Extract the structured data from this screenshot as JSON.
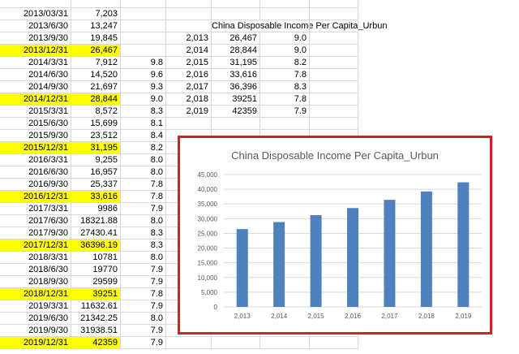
{
  "left_table": [
    {
      "date": "2013/03/31",
      "value": "7,203",
      "growth": "",
      "highlight": false
    },
    {
      "date": "2013/6/30",
      "value": "13,247",
      "growth": "",
      "highlight": false
    },
    {
      "date": "2013/9/30",
      "value": "19,845",
      "growth": "",
      "highlight": false
    },
    {
      "date": "2013/12/31",
      "value": "26,467",
      "growth": "",
      "highlight": true
    },
    {
      "date": "2014/3/31",
      "value": "7,912",
      "growth": "9.8",
      "highlight": false
    },
    {
      "date": "2014/6/30",
      "value": "14,520",
      "growth": "9.6",
      "highlight": false
    },
    {
      "date": "2014/9/30",
      "value": "21,697",
      "growth": "9.3",
      "highlight": false
    },
    {
      "date": "2014/12/31",
      "value": "28,844",
      "growth": "9.0",
      "highlight": true
    },
    {
      "date": "2015/3/31",
      "value": "8,572",
      "growth": "8.3",
      "highlight": false
    },
    {
      "date": "2015/6/30",
      "value": "15,699",
      "growth": "8.1",
      "highlight": false
    },
    {
      "date": "2015/9/30",
      "value": "23,512",
      "growth": "8.4",
      "highlight": false
    },
    {
      "date": "2015/12/31",
      "value": "31,195",
      "growth": "8.2",
      "highlight": true
    },
    {
      "date": "2016/3/31",
      "value": "9,255",
      "growth": "8.0",
      "highlight": false
    },
    {
      "date": "2016/6/30",
      "value": "16,957",
      "growth": "8.0",
      "highlight": false
    },
    {
      "date": "2016/9/30",
      "value": "25,337",
      "growth": "7.8",
      "highlight": false
    },
    {
      "date": "2016/12/31",
      "value": "33,616",
      "growth": "7.8",
      "highlight": true
    },
    {
      "date": "2017/3/31",
      "value": "9986",
      "growth": "7.9",
      "highlight": false
    },
    {
      "date": "2017/6/30",
      "value": "18321.88",
      "growth": "8.0",
      "highlight": false
    },
    {
      "date": "2017/9/30",
      "value": "27430.41",
      "growth": "8.3",
      "highlight": false
    },
    {
      "date": "2017/12/31",
      "value": "36396.19",
      "growth": "8.3",
      "highlight": true
    },
    {
      "date": "2018/3/31",
      "value": "10781",
      "growth": "8.0",
      "highlight": false
    },
    {
      "date": "2018/6/30",
      "value": "19770",
      "growth": "7.9",
      "highlight": false
    },
    {
      "date": "2018/9/30",
      "value": "29599",
      "growth": "7.9",
      "highlight": false
    },
    {
      "date": "2018/12/31",
      "value": "39251",
      "growth": "7.8",
      "highlight": true
    },
    {
      "date": "2019/3/31",
      "value": "11632.61",
      "growth": "7.9",
      "highlight": false
    },
    {
      "date": "2019/6/30",
      "value": "21342.25",
      "growth": "8.0",
      "highlight": false
    },
    {
      "date": "2019/9/30",
      "value": "31938.51",
      "growth": "7.9",
      "highlight": false
    },
    {
      "date": "2019/12/31",
      "value": "42359",
      "growth": "7.9",
      "highlight": true
    }
  ],
  "right_table": {
    "title": "China Disposable Income Per Capita_Urbun",
    "rows": [
      {
        "year": "2,013",
        "value": "26,467",
        "growth": "9.0"
      },
      {
        "year": "2,014",
        "value": "28,844",
        "growth": "9.0"
      },
      {
        "year": "2,015",
        "value": "31,195",
        "growth": "8.2"
      },
      {
        "year": "2,016",
        "value": "33,616",
        "growth": "7.8"
      },
      {
        "year": "2,017",
        "value": "36,396",
        "growth": "8.3"
      },
      {
        "year": "2,018",
        "value": "39251",
        "growth": "7.8"
      },
      {
        "year": "2,019",
        "value": "42359",
        "growth": "7.9"
      }
    ]
  },
  "chart_data": {
    "type": "bar",
    "title": "China Disposable Income Per Capita_Urbun",
    "categories": [
      "2,013",
      "2,014",
      "2,015",
      "2,016",
      "2,017",
      "2,018",
      "2,019"
    ],
    "values": [
      26467,
      28844,
      31195,
      33616,
      36396,
      39251,
      42359
    ],
    "ylim": [
      0,
      45000
    ],
    "yticks": [
      "0",
      "5,000",
      "10,000",
      "15,000",
      "20,000",
      "25,000",
      "30,000",
      "35,000",
      "40,000",
      "45,000"
    ],
    "grid": true,
    "bar_color": "#4f81bd",
    "frame_color": "#d62027"
  }
}
